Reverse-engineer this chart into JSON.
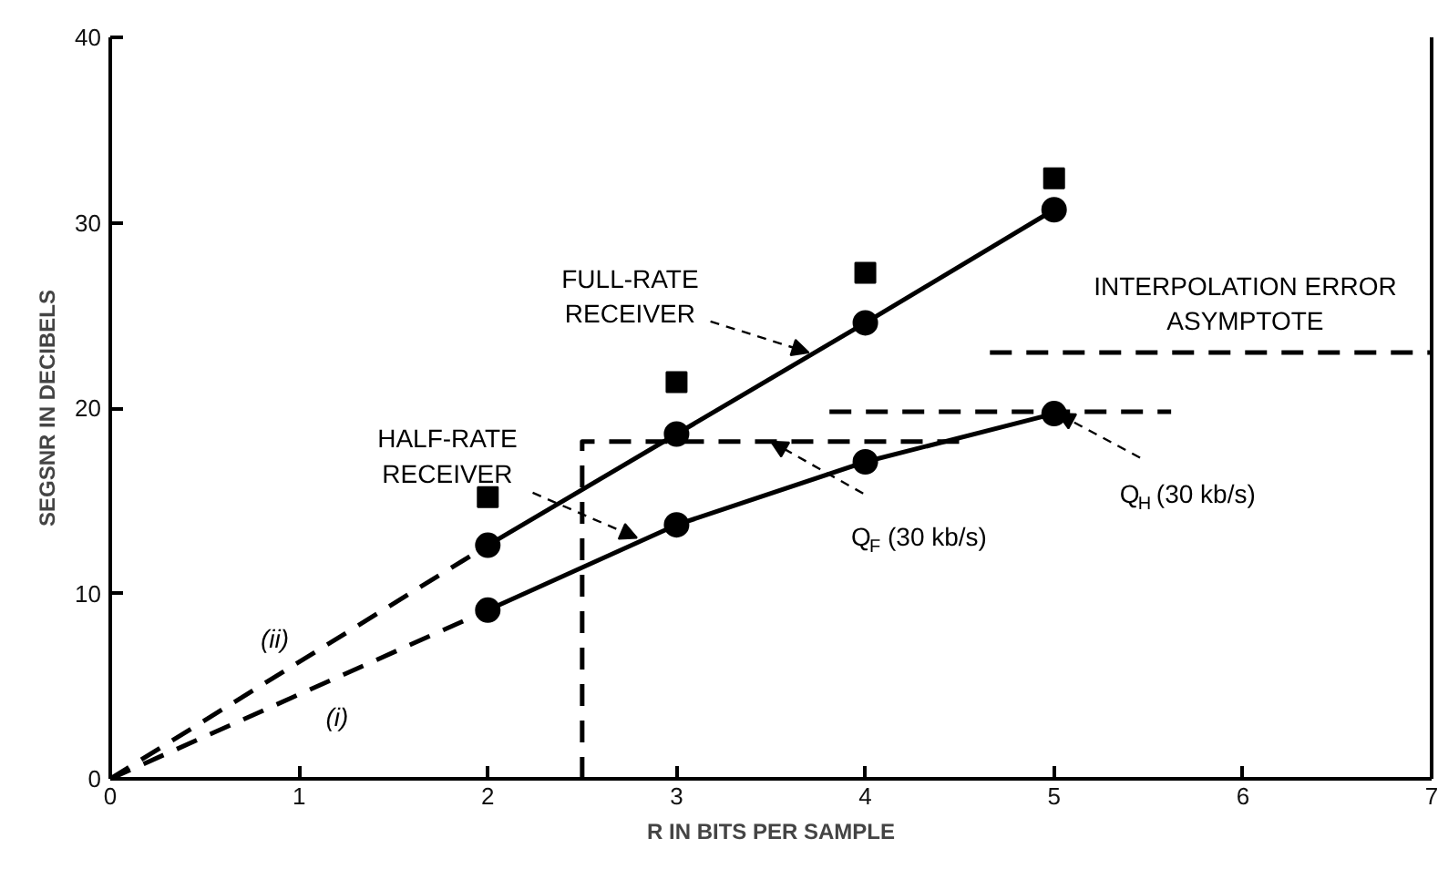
{
  "chart_data": {
    "type": "line",
    "xlabel": "R IN BITS PER SAMPLE",
    "ylabel": "SEGSNR IN DECIBELS",
    "xlim": [
      0,
      7
    ],
    "ylim": [
      0,
      40
    ],
    "xticks": [
      0,
      1,
      2,
      3,
      4,
      5,
      6,
      7
    ],
    "yticks": [
      0,
      10,
      20,
      30,
      40
    ],
    "grid": false,
    "series": [
      {
        "x": [
          0,
          2
        ],
        "values": [
          0,
          12.6
        ],
        "color": "#000000",
        "line_style": "dashed"
      },
      {
        "x": [
          2,
          3,
          4,
          5
        ],
        "values": [
          12.6,
          18.6,
          24.6,
          30.7
        ],
        "color": "#000000",
        "line_style": "solid",
        "marker": "circle"
      },
      {
        "type": "scatter",
        "x": [
          2,
          3,
          4,
          5
        ],
        "values": [
          15.2,
          21.4,
          27.3,
          32.4
        ],
        "color": "#000000",
        "marker": "square"
      },
      {
        "x": [
          0,
          2
        ],
        "values": [
          0,
          9.1
        ],
        "color": "#000000",
        "line_style": "dashed"
      },
      {
        "x": [
          2,
          3,
          4,
          5
        ],
        "values": [
          9.1,
          13.7,
          17.1,
          19.7
        ],
        "color": "#000000",
        "line_style": "solid",
        "marker": "circle"
      },
      {
        "x": [
          2.5,
          2.5,
          4.57
        ],
        "values": [
          0,
          18.2,
          18.2
        ],
        "color": "#000000",
        "line_style": "dashed"
      },
      {
        "x": [
          3.81,
          5.62
        ],
        "values": [
          19.8,
          19.8
        ],
        "color": "#000000",
        "line_style": "dashed"
      },
      {
        "x": [
          4.66,
          7
        ],
        "values": [
          23,
          23
        ],
        "color": "#000000",
        "line_style": "dashed"
      }
    ],
    "annotations": [
      {
        "text": "FULL-RATE\nRECEIVER",
        "x": 3.7,
        "y": 23
      },
      {
        "text": "HALF-RATE\nRECEIVER",
        "x": 2.79,
        "y": 13
      },
      {
        "text": "Q$_{F}$ (30 kb/s)",
        "x": 3.5,
        "y": 18.2
      },
      {
        "text": "Q$_{H}$ (30 kb/s)",
        "x": 5.02,
        "y": 19.7
      },
      {
        "text": "INTERPOLATION ERROR\nASYMPTOTE",
        "x": 5.8,
        "y": 23
      },
      {
        "text": "(ii)",
        "x": 0.9,
        "y": 5.7
      },
      {
        "text": "(i)",
        "x": 1.25,
        "y": 5.7
      }
    ]
  }
}
